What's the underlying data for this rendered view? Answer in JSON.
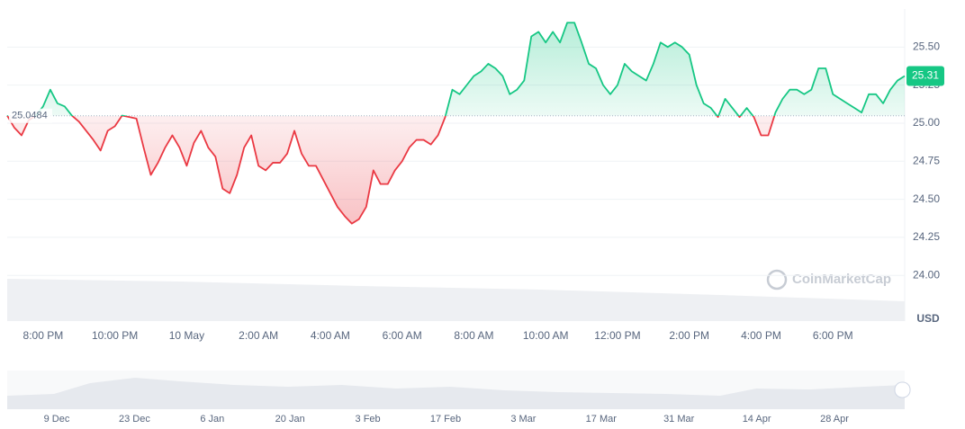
{
  "chart_data": {
    "type": "line",
    "values": [
      25.05,
      24.97,
      24.92,
      25.02,
      25.05,
      25.11,
      25.22,
      25.13,
      25.11,
      25.05,
      25.01,
      24.95,
      24.89,
      24.82,
      24.95,
      24.98,
      25.05,
      25.04,
      25.03,
      24.84,
      24.66,
      24.74,
      24.84,
      24.92,
      24.84,
      24.72,
      24.87,
      24.95,
      24.84,
      24.78,
      24.57,
      24.54,
      24.66,
      24.84,
      24.92,
      24.72,
      24.69,
      24.74,
      24.74,
      24.8,
      24.95,
      24.8,
      24.72,
      24.72,
      24.63,
      24.54,
      24.45,
      24.39,
      24.34,
      24.37,
      24.45,
      24.69,
      24.6,
      24.6,
      24.69,
      24.75,
      24.84,
      24.89,
      24.89,
      24.86,
      24.92,
      25.04,
      25.22,
      25.19,
      25.25,
      25.31,
      25.34,
      25.39,
      25.36,
      25.31,
      25.19,
      25.22,
      25.28,
      25.57,
      25.6,
      25.53,
      25.6,
      25.53,
      25.66,
      25.66,
      25.53,
      25.39,
      25.36,
      25.25,
      25.19,
      25.25,
      25.39,
      25.34,
      25.31,
      25.28,
      25.39,
      25.53,
      25.5,
      25.53,
      25.5,
      25.45,
      25.25,
      25.13,
      25.1,
      25.04,
      25.16,
      25.1,
      25.04,
      25.1,
      25.04,
      24.92,
      24.92,
      25.07,
      25.16,
      25.22,
      25.22,
      25.19,
      25.22,
      25.36,
      25.36,
      25.19,
      25.16,
      25.13,
      25.1,
      25.07,
      25.19,
      25.19,
      25.13,
      25.22,
      25.28,
      25.31
    ],
    "categories": [
      null,
      null,
      null,
      null,
      null,
      "8:00 PM",
      null,
      null,
      null,
      null,
      null,
      null,
      null,
      null,
      null,
      "10:00 PM",
      null,
      null,
      null,
      null,
      null,
      null,
      null,
      null,
      null,
      "10 May",
      null,
      null,
      null,
      null,
      null,
      null,
      null,
      null,
      null,
      "2:00 AM",
      null,
      null,
      null,
      null,
      null,
      null,
      null,
      null,
      null,
      "4:00 AM",
      null,
      null,
      null,
      null,
      null,
      null,
      null,
      null,
      null,
      "6:00 AM",
      null,
      null,
      null,
      null,
      null,
      null,
      null,
      null,
      null,
      "8:00 AM",
      null,
      null,
      null,
      null,
      null,
      null,
      null,
      null,
      null,
      "10:00 AM",
      null,
      null,
      null,
      null,
      null,
      null,
      null,
      null,
      null,
      "12:00 PM",
      null,
      null,
      null,
      null,
      null,
      null,
      null,
      null,
      null,
      "2:00 PM",
      null,
      null,
      null,
      null,
      null,
      null,
      null,
      null,
      null,
      "4:00 PM",
      null,
      null,
      null,
      null,
      null,
      null,
      null,
      null,
      null,
      "6:00 PM",
      null,
      null,
      null,
      null,
      null,
      null,
      null,
      null,
      null,
      null
    ],
    "baseline": 25.0484,
    "colors": {
      "up": "#16c784",
      "down": "#ea3943"
    },
    "ylim": [
      23.7,
      25.75
    ],
    "yticks": [
      {
        "value": 25.5,
        "label": "25.50"
      },
      {
        "value": 25.25,
        "label": "25.25"
      },
      {
        "value": 25.0,
        "label": "25.00"
      },
      {
        "value": 24.75,
        "label": "24.75"
      },
      {
        "value": 24.5,
        "label": "24.50"
      },
      {
        "value": 24.25,
        "label": "24.25"
      },
      {
        "value": 24.0,
        "label": "24.00"
      }
    ],
    "grid": true,
    "currency": "USD",
    "watermark": "CoinMarketCap",
    "navigator": {
      "labels": [
        "9 Dec",
        "23 Dec",
        "6 Jan",
        "20 Jan",
        "3 Feb",
        "17 Feb",
        "3 Mar",
        "17 Mar",
        "31 Mar",
        "14 Apr",
        "28 Apr"
      ]
    }
  }
}
